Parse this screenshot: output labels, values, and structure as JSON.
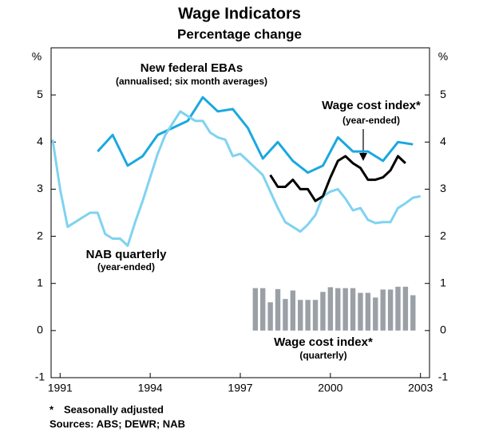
{
  "chart_data": {
    "type": "line",
    "title": "Wage Indicators",
    "subtitle": "Percentage change",
    "y_unit": "%",
    "y2_unit": "%",
    "xlim": [
      1990.7,
      2003.3
    ],
    "xticks": [
      1991,
      1994,
      1997,
      2000,
      2003
    ],
    "ylim": [
      -1,
      6
    ],
    "yticks": [
      -1,
      0,
      1,
      2,
      3,
      4,
      5
    ],
    "grid": false,
    "series": [
      {
        "name": "New federal EBAs",
        "note": "(annualised; six month averages)",
        "color": "#1aa8e0",
        "x": [
          1992.25,
          1992.75,
          1993.25,
          1993.75,
          1994.25,
          1994.75,
          1995.25,
          1995.75,
          1996.25,
          1996.75,
          1997.25,
          1997.75,
          1998.25,
          1998.75,
          1999.25,
          1999.75,
          2000.25,
          2000.75,
          2001.25,
          2001.75,
          2002.25,
          2002.75
        ],
        "values": [
          3.8,
          4.15,
          3.5,
          3.7,
          4.15,
          4.3,
          4.45,
          4.95,
          4.65,
          4.7,
          4.3,
          3.65,
          4.0,
          3.6,
          3.35,
          3.5,
          4.1,
          3.8,
          3.8,
          3.6,
          4.0,
          3.95
        ]
      },
      {
        "name": "NAB quarterly",
        "note": "(year-ended)",
        "color": "#7fd3f0",
        "x": [
          1990.75,
          1991.0,
          1991.25,
          1991.5,
          1991.75,
          1992.0,
          1992.25,
          1992.5,
          1992.75,
          1993.0,
          1993.25,
          1993.5,
          1993.75,
          1994.0,
          1994.25,
          1994.5,
          1994.75,
          1995.0,
          1995.25,
          1995.5,
          1995.75,
          1996.0,
          1996.25,
          1996.5,
          1996.75,
          1997.0,
          1997.25,
          1997.5,
          1997.75,
          1998.0,
          1998.25,
          1998.5,
          1998.75,
          1999.0,
          1999.25,
          1999.5,
          1999.75,
          2000.0,
          2000.25,
          2000.5,
          2000.75,
          2001.0,
          2001.25,
          2001.5,
          2001.75,
          2002.0,
          2002.25,
          2002.5,
          2002.75,
          2003.0
        ],
        "values": [
          4.05,
          3.0,
          2.2,
          2.3,
          2.4,
          2.5,
          2.5,
          2.05,
          1.95,
          1.95,
          1.8,
          2.3,
          2.75,
          3.25,
          3.75,
          4.15,
          4.4,
          4.65,
          4.55,
          4.45,
          4.45,
          4.2,
          4.1,
          4.05,
          3.7,
          3.75,
          3.6,
          3.45,
          3.3,
          2.95,
          2.6,
          2.3,
          2.2,
          2.1,
          2.25,
          2.45,
          2.85,
          2.95,
          3.0,
          2.8,
          2.55,
          2.6,
          2.35,
          2.28,
          2.3,
          2.3,
          2.6,
          2.7,
          2.82,
          2.85
        ]
      },
      {
        "name": "Wage cost index*",
        "note": "(year-ended)",
        "color": "#000000",
        "x": [
          1998.0,
          1998.25,
          1998.5,
          1998.75,
          1999.0,
          1999.25,
          1999.5,
          1999.75,
          2000.0,
          2000.25,
          2000.5,
          2000.75,
          2001.0,
          2001.25,
          2001.5,
          2001.75,
          2002.0,
          2002.25,
          2002.5
        ],
        "values": [
          3.3,
          3.05,
          3.05,
          3.2,
          3.0,
          3.0,
          2.75,
          2.85,
          3.25,
          3.6,
          3.7,
          3.55,
          3.45,
          3.2,
          3.2,
          3.25,
          3.4,
          3.7,
          3.55
        ]
      },
      {
        "name": "Wage cost index*",
        "note": "(quarterly)",
        "type": "bar",
        "color": "#9aa0a6",
        "x": [
          1997.5,
          1997.75,
          1998.0,
          1998.25,
          1998.5,
          1998.75,
          1999.0,
          1999.25,
          1999.5,
          1999.75,
          2000.0,
          2000.25,
          2000.5,
          2000.75,
          2001.0,
          2001.25,
          2001.5,
          2001.75,
          2002.0,
          2002.25,
          2002.5,
          2002.75
        ],
        "values": [
          0.9,
          0.9,
          0.6,
          0.88,
          0.67,
          0.85,
          0.65,
          0.65,
          0.65,
          0.82,
          0.92,
          0.9,
          0.9,
          0.9,
          0.8,
          0.8,
          0.7,
          0.87,
          0.87,
          0.93,
          0.93,
          0.75
        ]
      }
    ],
    "footnote_marker": "*",
    "footnote": "Seasonally adjusted",
    "sources": "Sources: ABS; DEWR; NAB"
  }
}
